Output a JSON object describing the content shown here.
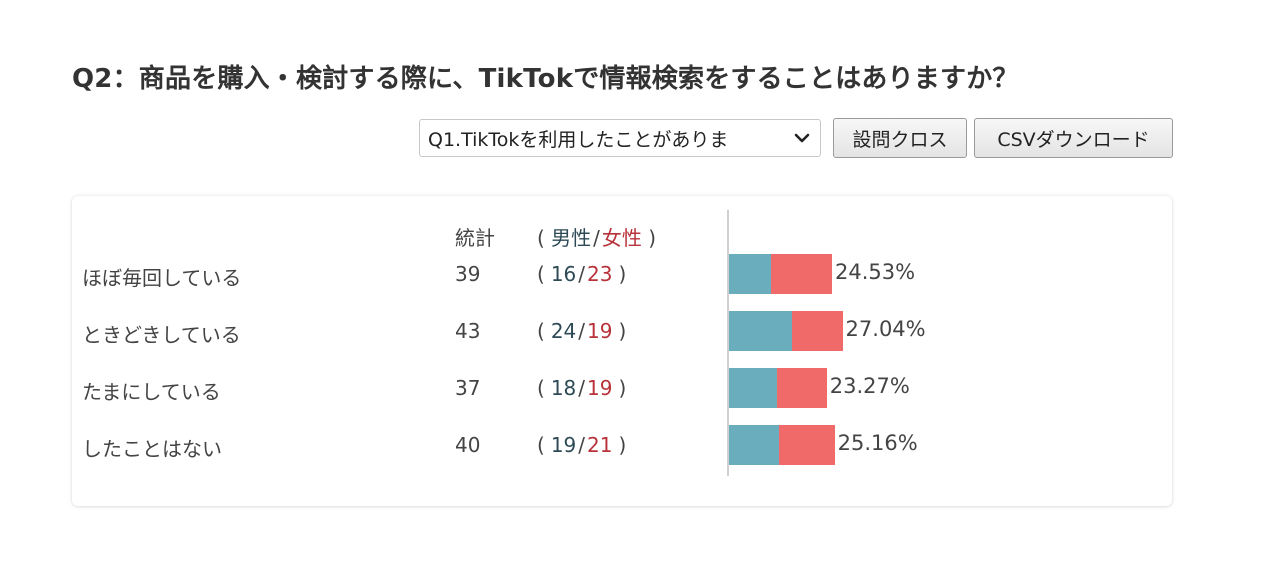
{
  "title": "Q2：商品を購入・検討する際に、TikTokで情報検索をすることはありますか？",
  "controls": {
    "select_value": "Q1.TikTokを利用したことがありま",
    "cross_button": "設問クロス",
    "csv_button": "CSVダウンロード"
  },
  "table": {
    "header_total": "統計",
    "header_male": "男性",
    "header_female": "女性",
    "paren_open": "(",
    "paren_close": ")",
    "slash": "/"
  },
  "colors": {
    "male": "#6aaebd",
    "female": "#ef6a68",
    "male_text": "#2d4a55",
    "female_text": "#b8323a"
  },
  "chart_data": {
    "type": "bar",
    "orientation": "horizontal",
    "stacked": true,
    "categories": [
      "ほぼ毎回している",
      "ときどきしている",
      "たまにしている",
      "したことはない"
    ],
    "totals": [
      39,
      43,
      37,
      40
    ],
    "percentages": [
      "24.53%",
      "27.04%",
      "23.27%",
      "25.16%"
    ],
    "percent_values": [
      24.53,
      27.04,
      23.27,
      25.16
    ],
    "series": [
      {
        "name": "男性",
        "values": [
          16,
          24,
          18,
          19
        ],
        "color": "#6aaebd"
      },
      {
        "name": "女性",
        "values": [
          23,
          19,
          19,
          21
        ],
        "color": "#ef6a68"
      }
    ]
  }
}
